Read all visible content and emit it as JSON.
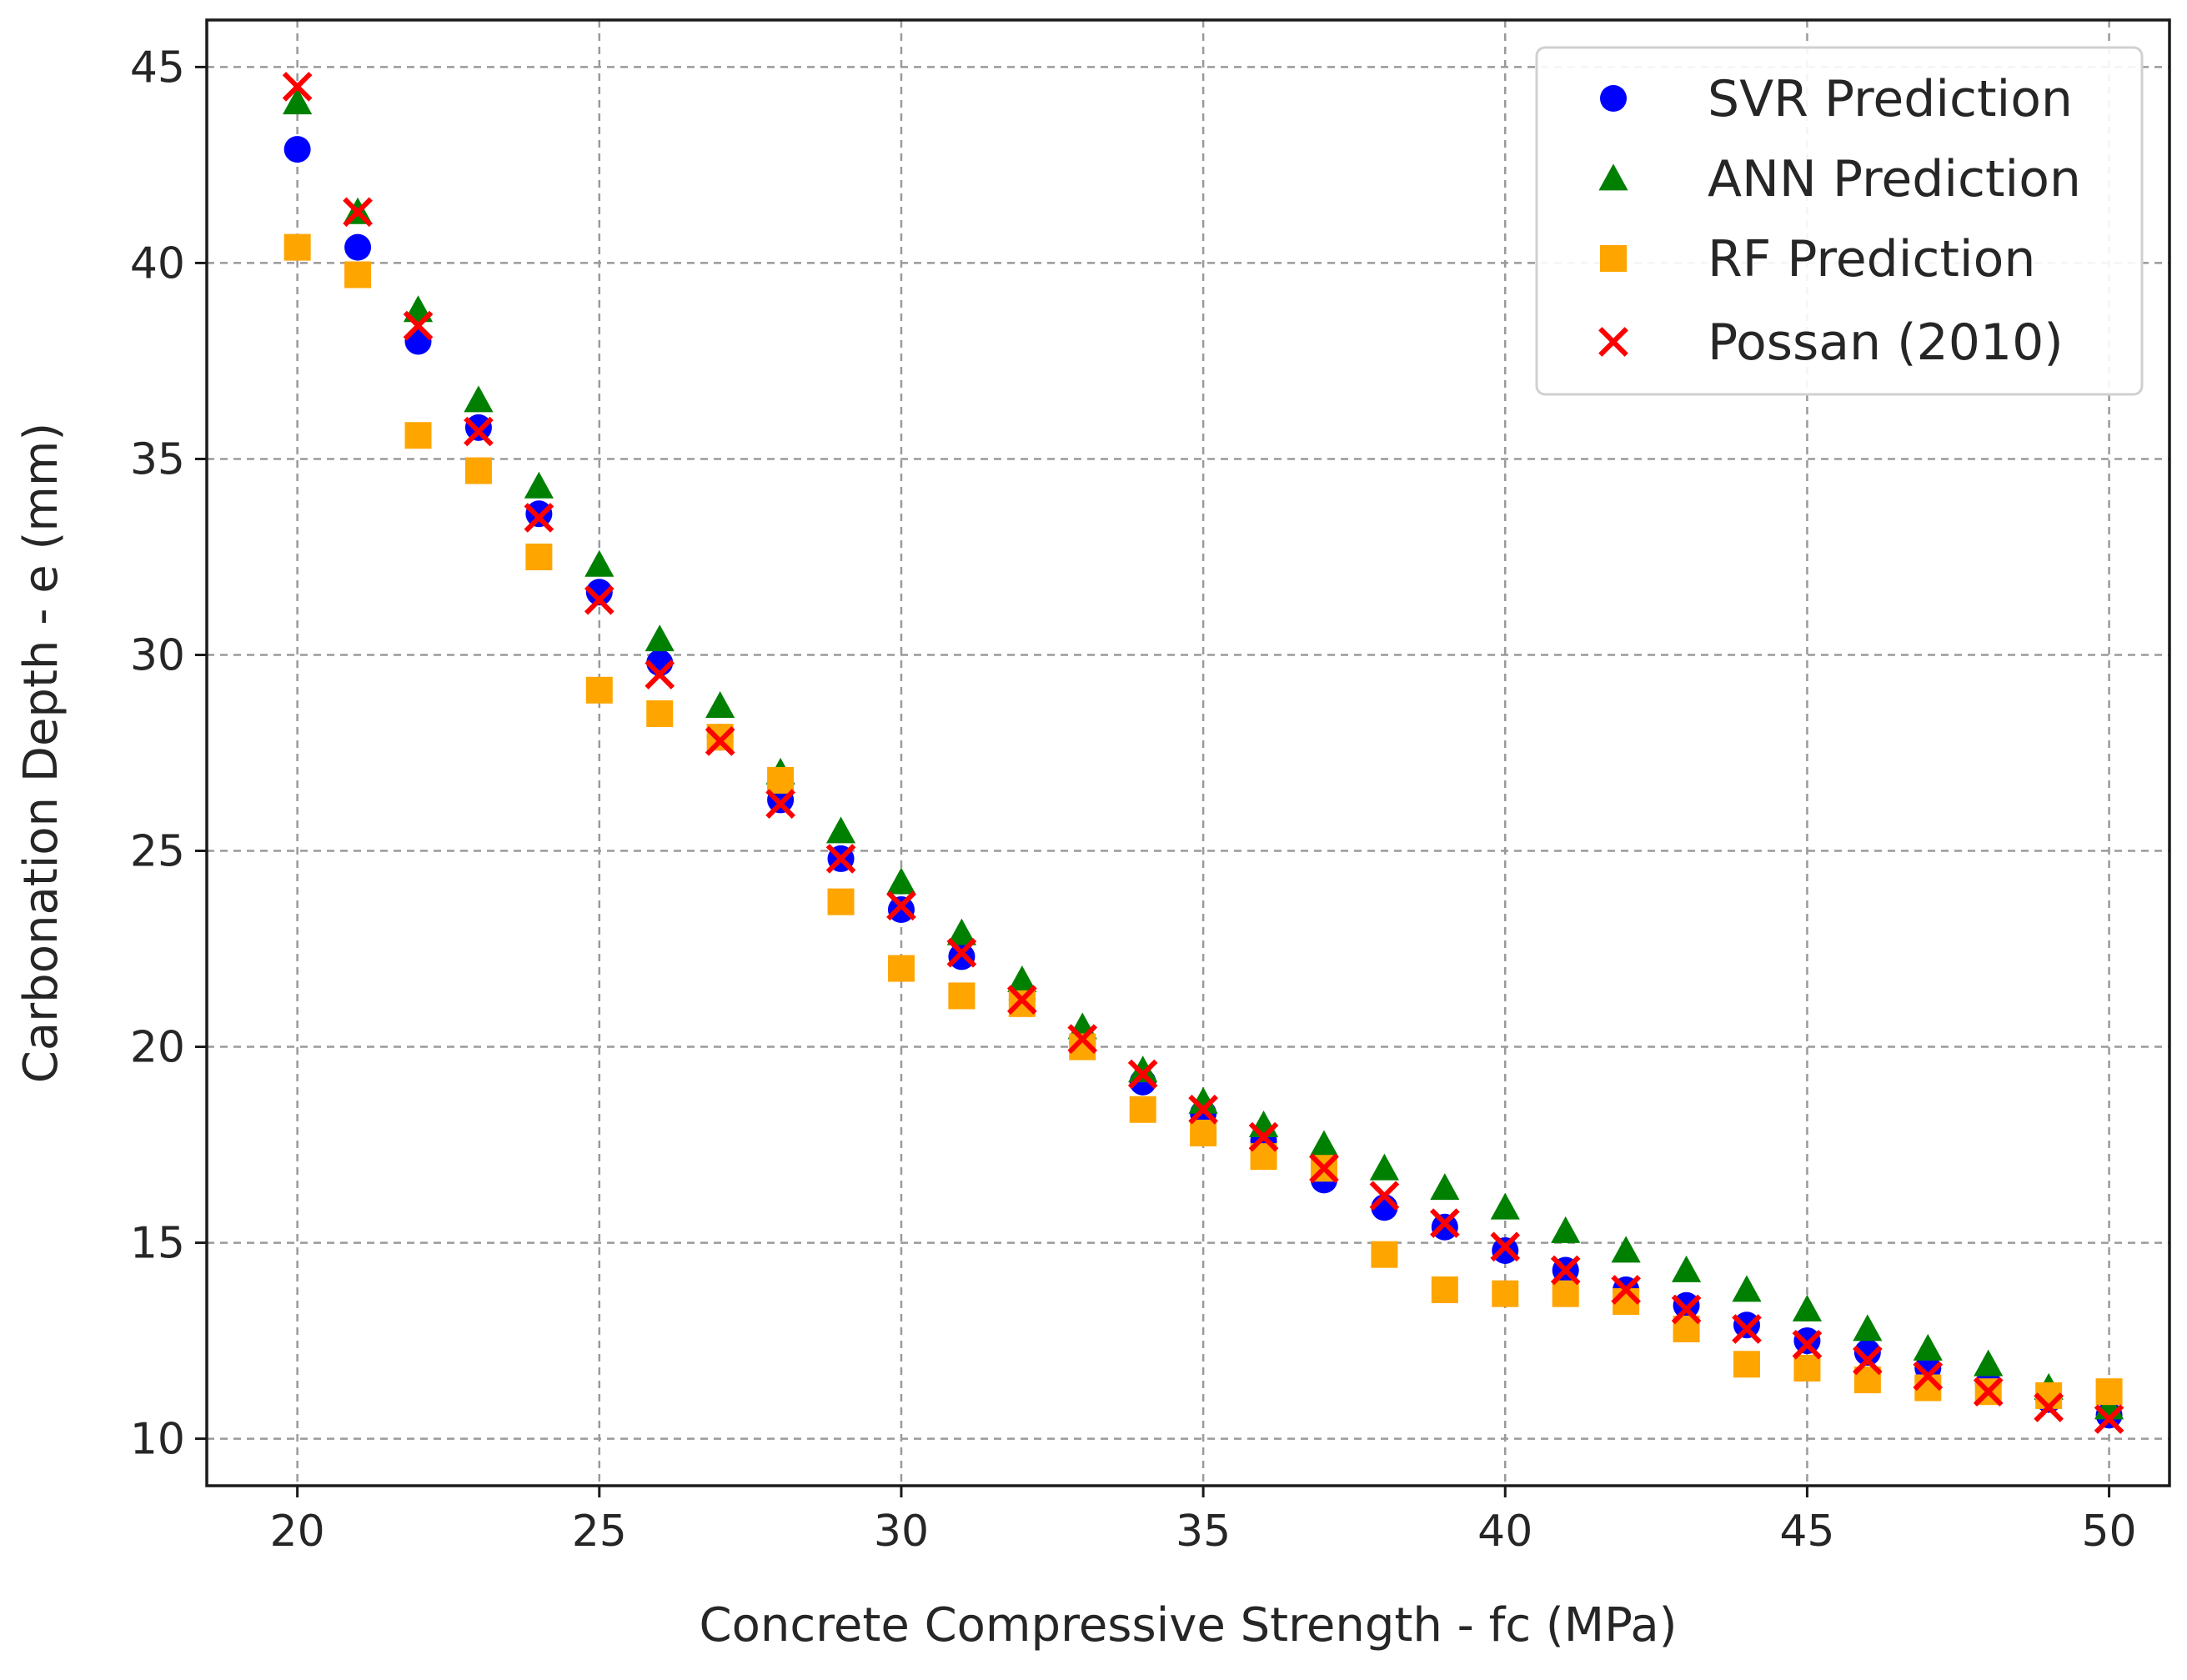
{
  "chart_data": {
    "type": "scatter",
    "title": "",
    "xlabel": "Concrete Compressive Strength - fc (MPa)",
    "ylabel": "Carbonation Depth - e (mm)",
    "xlim": [
      18.5,
      51
    ],
    "ylim": [
      8.8,
      46.2
    ],
    "xticks": [
      20,
      25,
      30,
      35,
      40,
      45,
      50
    ],
    "yticks": [
      10,
      15,
      20,
      25,
      30,
      35,
      40,
      45
    ],
    "grid": true,
    "legend_position": "top-right",
    "x": [
      20,
      21,
      22,
      23,
      24,
      25,
      26,
      27,
      28,
      29,
      30,
      31,
      32,
      33,
      34,
      35,
      36,
      37,
      38,
      39,
      40,
      41,
      42,
      43,
      44,
      45,
      46,
      47,
      48,
      49,
      50
    ],
    "series": [
      {
        "name": "SVR Prediction",
        "marker": "circle",
        "color": "#0000ff",
        "values": [
          42.9,
          40.4,
          38.0,
          35.8,
          33.6,
          31.6,
          29.8,
          27.9,
          26.3,
          24.8,
          23.5,
          22.3,
          21.2,
          20.1,
          19.1,
          18.3,
          17.6,
          16.6,
          15.9,
          15.4,
          14.8,
          14.3,
          13.8,
          13.4,
          12.9,
          12.5,
          12.2,
          11.8,
          11.4,
          11.0,
          10.6
        ]
      },
      {
        "name": "ANN Prediction",
        "marker": "triangle",
        "color": "#008000",
        "values": [
          44.1,
          41.3,
          38.8,
          36.5,
          34.3,
          32.3,
          30.4,
          28.7,
          27.0,
          25.5,
          24.2,
          22.9,
          21.7,
          20.5,
          19.4,
          18.6,
          18.0,
          17.5,
          16.9,
          16.4,
          15.9,
          15.3,
          14.8,
          14.3,
          13.8,
          13.3,
          12.8,
          12.3,
          11.9,
          11.3,
          10.8
        ]
      },
      {
        "name": "RF Prediction",
        "marker": "square",
        "color": "#ffa500",
        "values": [
          40.4,
          39.7,
          35.6,
          34.7,
          32.5,
          29.1,
          28.5,
          27.9,
          26.8,
          23.7,
          22.0,
          21.3,
          21.1,
          20.0,
          18.4,
          17.8,
          17.2,
          16.9,
          14.7,
          13.8,
          13.7,
          13.7,
          13.5,
          12.8,
          11.9,
          11.8,
          11.5,
          11.3,
          11.2,
          11.1,
          11.2
        ]
      },
      {
        "name": "Possan (2010)",
        "marker": "x",
        "color": "#ff0000",
        "values": [
          44.5,
          41.3,
          38.4,
          35.7,
          33.5,
          31.4,
          29.5,
          27.8,
          26.2,
          24.8,
          23.6,
          22.4,
          21.2,
          20.2,
          19.3,
          18.4,
          17.7,
          16.9,
          16.2,
          15.5,
          14.9,
          14.3,
          13.8,
          13.3,
          12.8,
          12.4,
          12.0,
          11.6,
          11.2,
          10.8,
          10.5
        ]
      }
    ]
  }
}
